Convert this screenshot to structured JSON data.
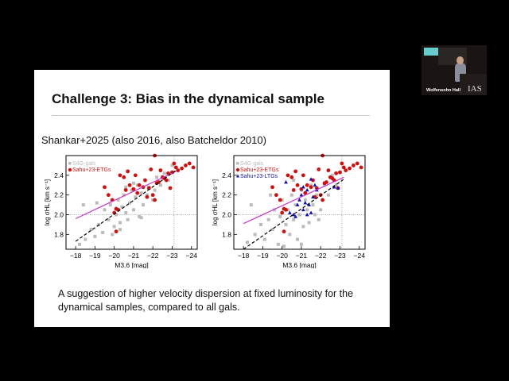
{
  "slide": {
    "title": "Challenge 3: Bias in the dynamical sample",
    "subtitle": "Shankar+2025 (also 2016, also Batcheldor 2010)",
    "caption": "A suggestion of higher velocity dispersion at fixed luminosity for the dynamical samples, compared to all gals."
  },
  "video": {
    "location_label": "Wolfensohn Hall",
    "logo": "IAS"
  },
  "chart_data": [
    {
      "type": "scatter",
      "xlabel": "M3.6 [mag]",
      "ylabel": "log σHL [km s⁻¹]",
      "xlim": [
        -17.5,
        -24.3
      ],
      "ylim": [
        1.65,
        2.6
      ],
      "xticks": [
        "-18",
        "-19",
        "-20",
        "-21",
        "-22",
        "-23",
        "-24"
      ],
      "yticks": [
        "1.8",
        "2.0",
        "2.2",
        "2.4"
      ],
      "ref_lines": {
        "y": 2.0,
        "x": -23.1
      },
      "fit_lines": [
        {
          "color": "#cc33cc",
          "style": "solid",
          "from": [
            -18,
            1.96
          ],
          "to": [
            -23.2,
            2.44
          ]
        },
        {
          "color": "#000000",
          "style": "dashed",
          "from": [
            -18,
            1.73
          ],
          "to": [
            -23.2,
            2.45
          ]
        }
      ],
      "series": [
        {
          "name": "S4G-gals",
          "color": "#bbbbbb",
          "marker": "square",
          "points": [
            [
              -18.2,
              1.7
            ],
            [
              -18.5,
              1.75
            ],
            [
              -18.8,
              1.85
            ],
            [
              -19,
              1.78
            ],
            [
              -19.2,
              1.9
            ],
            [
              -19.4,
              1.82
            ],
            [
              -19.5,
              2.05
            ],
            [
              -19.7,
              1.95
            ],
            [
              -19.8,
              2.1
            ],
            [
              -20,
              1.88
            ],
            [
              -20.1,
              2.0
            ],
            [
              -20.2,
              2.15
            ],
            [
              -20.3,
              1.92
            ],
            [
              -20.4,
              2.08
            ],
            [
              -20.5,
              2.2
            ],
            [
              -20.6,
              2.02
            ],
            [
              -20.7,
              1.95
            ],
            [
              -20.8,
              2.12
            ],
            [
              -20.9,
              2.25
            ],
            [
              -21,
              2.05
            ],
            [
              -21.1,
              2.18
            ],
            [
              -21.2,
              2.3
            ],
            [
              -21.3,
              1.98
            ],
            [
              -21.4,
              2.22
            ],
            [
              -21.5,
              2.1
            ],
            [
              -21.6,
              2.35
            ],
            [
              -21.7,
              2.2
            ],
            [
              -21.8,
              2.28
            ],
            [
              -22,
              2.15
            ],
            [
              -22.2,
              2.38
            ],
            [
              -22.4,
              2.3
            ],
            [
              -22.6,
              2.42
            ],
            [
              -22.8,
              2.35
            ],
            [
              -23,
              2.5
            ],
            [
              -18.4,
              2.1
            ],
            [
              -19.1,
              2.12
            ],
            [
              -19.9,
              1.8
            ],
            [
              -20.6,
              2.28
            ],
            [
              -21.4,
              1.97
            ],
            [
              -22.1,
              2.25
            ],
            [
              -20.3,
              1.85
            ],
            [
              -21.0,
              2.32
            ]
          ]
        },
        {
          "name": "Sahu+23-ETGs",
          "color": "#cc1111",
          "marker": "circle",
          "points": [
            [
              -19.5,
              2.28
            ],
            [
              -19.7,
              2.2
            ],
            [
              -19.9,
              2.15
            ],
            [
              -20,
              2.02
            ],
            [
              -20.1,
              2.06
            ],
            [
              -20.2,
              2.05
            ],
            [
              -20.1,
              1.83
            ],
            [
              -20.3,
              2.4
            ],
            [
              -20.5,
              2.38
            ],
            [
              -20.6,
              2.25
            ],
            [
              -20.8,
              2.3
            ],
            [
              -21,
              2.26
            ],
            [
              -21.2,
              2.22
            ],
            [
              -21.3,
              2.3
            ],
            [
              -21.5,
              2.28
            ],
            [
              -21.6,
              2.35
            ],
            [
              -21.7,
              2.18
            ],
            [
              -21.8,
              2.27
            ],
            [
              -21.9,
              2.46
            ],
            [
              -22.0,
              2.2
            ],
            [
              -22.1,
              2.15
            ],
            [
              -22.2,
              2.32
            ],
            [
              -22.3,
              2.33
            ],
            [
              -22.4,
              2.45
            ],
            [
              -22.5,
              2.38
            ],
            [
              -22.6,
              2.37
            ],
            [
              -22.7,
              2.35
            ],
            [
              -22.8,
              2.42
            ],
            [
              -22.9,
              2.27
            ],
            [
              -23.0,
              2.43
            ],
            [
              -23.1,
              2.52
            ],
            [
              -23.2,
              2.48
            ],
            [
              -23.3,
              2.45
            ],
            [
              -23.5,
              2.47
            ],
            [
              -23.7,
              2.5
            ],
            [
              -23.9,
              2.52
            ],
            [
              -24.1,
              2.48
            ],
            [
              -20.7,
              2.44
            ],
            [
              -22.1,
              2.6
            ],
            [
              -21.1,
              2.4
            ]
          ]
        }
      ]
    },
    {
      "type": "scatter",
      "xlabel": "M3.6 [mag]",
      "ylabel": "log σHL [km s⁻¹]",
      "xlim": [
        -17.5,
        -24.3
      ],
      "ylim": [
        1.65,
        2.6
      ],
      "xticks": [
        "-18",
        "-19",
        "-20",
        "-21",
        "-22",
        "-23",
        "-24"
      ],
      "yticks": [
        "1.8",
        "2.0",
        "2.2",
        "2.4"
      ],
      "ref_lines": {
        "y": 2.0,
        "x": -23.1
      },
      "fit_lines": [
        {
          "color": "#cc33cc",
          "style": "solid",
          "from": [
            -18,
            1.91
          ],
          "to": [
            -23.2,
            2.38
          ]
        },
        {
          "color": "#000000",
          "style": "dashed",
          "from": [
            -18,
            1.65
          ],
          "to": [
            -23.2,
            2.36
          ]
        }
      ],
      "series": [
        {
          "name": "S4G-gals",
          "color": "#bbbbbb",
          "marker": "square",
          "points": [
            [
              -18.2,
              1.72
            ],
            [
              -18.4,
              2.1
            ],
            [
              -18.6,
              1.8
            ],
            [
              -18.9,
              1.9
            ],
            [
              -19.1,
              1.75
            ],
            [
              -19.3,
              1.95
            ],
            [
              -19.5,
              1.85
            ],
            [
              -19.6,
              2.05
            ],
            [
              -19.8,
              1.7
            ],
            [
              -19.9,
              1.98
            ],
            [
              -20,
              2.15
            ],
            [
              -20.2,
              1.9
            ],
            [
              -20.3,
              2.05
            ],
            [
              -20.4,
              1.8
            ],
            [
              -20.5,
              2.2
            ],
            [
              -20.6,
              1.95
            ],
            [
              -20.7,
              2.1
            ],
            [
              -20.8,
              1.75
            ],
            [
              -20.9,
              2.0
            ],
            [
              -21,
              2.25
            ],
            [
              -21.1,
              1.88
            ],
            [
              -21.2,
              2.15
            ],
            [
              -21.3,
              2.05
            ],
            [
              -21.4,
              1.92
            ],
            [
              -21.5,
              2.3
            ],
            [
              -21.6,
              2.1
            ],
            [
              -21.7,
              2.0
            ],
            [
              -21.8,
              2.2
            ],
            [
              -22,
              2.05
            ],
            [
              -22.2,
              2.3
            ],
            [
              -22.4,
              2.2
            ],
            [
              -22.6,
              2.4
            ],
            [
              -22.8,
              2.3
            ],
            [
              -19.4,
              2.2
            ],
            [
              -20.1,
              1.68
            ],
            [
              -21.0,
              1.7
            ],
            [
              -20.6,
              2.35
            ],
            [
              -21.9,
              1.95
            ]
          ]
        },
        {
          "name": "Sahu+23-ETGs",
          "color": "#cc1111",
          "marker": "circle",
          "points": [
            [
              -19.5,
              2.28
            ],
            [
              -19.7,
              2.2
            ],
            [
              -19.9,
              2.15
            ],
            [
              -20,
              2.02
            ],
            [
              -20.1,
              2.06
            ],
            [
              -20.2,
              2.05
            ],
            [
              -20.1,
              1.83
            ],
            [
              -20.3,
              2.4
            ],
            [
              -20.5,
              2.38
            ],
            [
              -20.6,
              2.25
            ],
            [
              -20.8,
              2.3
            ],
            [
              -21,
              2.26
            ],
            [
              -21.2,
              2.22
            ],
            [
              -21.3,
              2.3
            ],
            [
              -21.5,
              2.28
            ],
            [
              -21.6,
              2.35
            ],
            [
              -21.7,
              2.18
            ],
            [
              -21.8,
              2.27
            ],
            [
              -21.9,
              2.46
            ],
            [
              -22.0,
              2.2
            ],
            [
              -22.1,
              2.15
            ],
            [
              -22.2,
              2.32
            ],
            [
              -22.3,
              2.33
            ],
            [
              -22.4,
              2.45
            ],
            [
              -22.5,
              2.38
            ],
            [
              -22.6,
              2.37
            ],
            [
              -22.7,
              2.35
            ],
            [
              -22.8,
              2.42
            ],
            [
              -22.9,
              2.27
            ],
            [
              -23.0,
              2.43
            ],
            [
              -23.1,
              2.52
            ],
            [
              -23.2,
              2.48
            ],
            [
              -23.3,
              2.45
            ],
            [
              -23.5,
              2.47
            ],
            [
              -23.7,
              2.5
            ],
            [
              -23.9,
              2.52
            ],
            [
              -24.1,
              2.48
            ],
            [
              -20.7,
              2.44
            ],
            [
              -22.1,
              2.6
            ],
            [
              -21.1,
              2.4
            ]
          ]
        },
        {
          "name": "Sahu+23-LTGs",
          "color": "#1111aa",
          "marker": "triangle",
          "points": [
            [
              -20.2,
              2.33
            ],
            [
              -20.4,
              2.02
            ],
            [
              -20.6,
              2.0
            ],
            [
              -20.7,
              1.98
            ],
            [
              -20.8,
              2.1
            ],
            [
              -20.9,
              2.15
            ],
            [
              -21.0,
              2.2
            ],
            [
              -21.1,
              2.05
            ],
            [
              -21.2,
              2.12
            ],
            [
              -21.3,
              2.25
            ],
            [
              -21.4,
              2.1
            ],
            [
              -21.5,
              2.02
            ],
            [
              -21.6,
              2.18
            ],
            [
              -21.7,
              2.3
            ],
            [
              -21.8,
              2.25
            ],
            [
              -21.5,
              2.36
            ],
            [
              -22.7,
              2.28
            ],
            [
              -22.9,
              2.27
            ],
            [
              -21.1,
              2.28
            ],
            [
              -21.3,
              2.0
            ]
          ]
        }
      ]
    }
  ]
}
